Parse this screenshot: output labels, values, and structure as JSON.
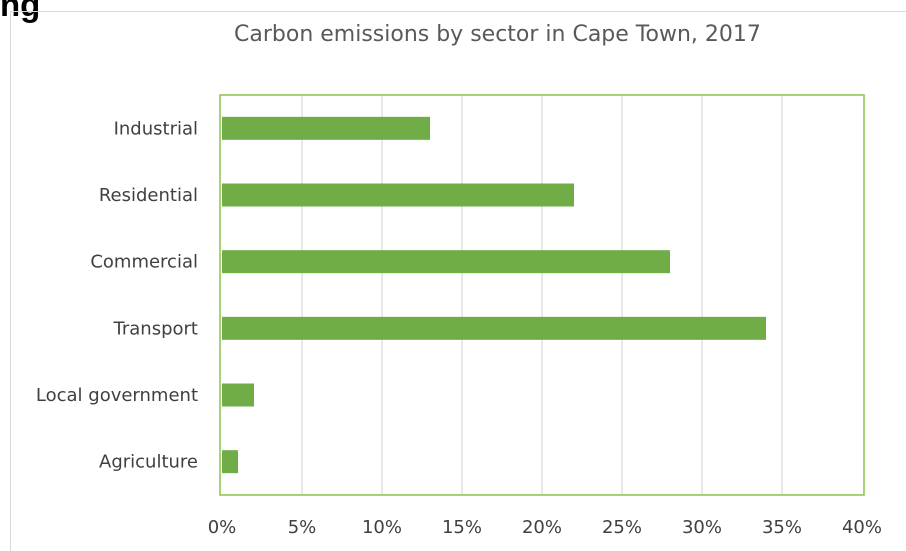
{
  "page": {
    "heading_fragment": "ng"
  },
  "chart_data": {
    "type": "bar",
    "orientation": "horizontal",
    "title": "Carbon emissions by sector in Cape Town, 2017",
    "categories": [
      "Industrial",
      "Residential",
      "Commercial",
      "Transport",
      "Local government",
      "Agriculture"
    ],
    "values": [
      13,
      22,
      28,
      34,
      2,
      1
    ],
    "xlim": [
      0,
      40
    ],
    "x_ticks": [
      "0%",
      "5%",
      "10%",
      "15%",
      "20%",
      "25%",
      "30%",
      "35%",
      "40%"
    ],
    "x_tick_values": [
      0,
      5,
      10,
      15,
      20,
      25,
      30,
      35,
      40
    ],
    "xlabel": "",
    "ylabel": "",
    "grid": "vertical",
    "legend": "none",
    "colors": {
      "bar": "#70ad47",
      "plot_border": "#8bc34a",
      "grid": "#d9d9d9",
      "tick_text": "#404040",
      "title_text": "#595959"
    }
  }
}
